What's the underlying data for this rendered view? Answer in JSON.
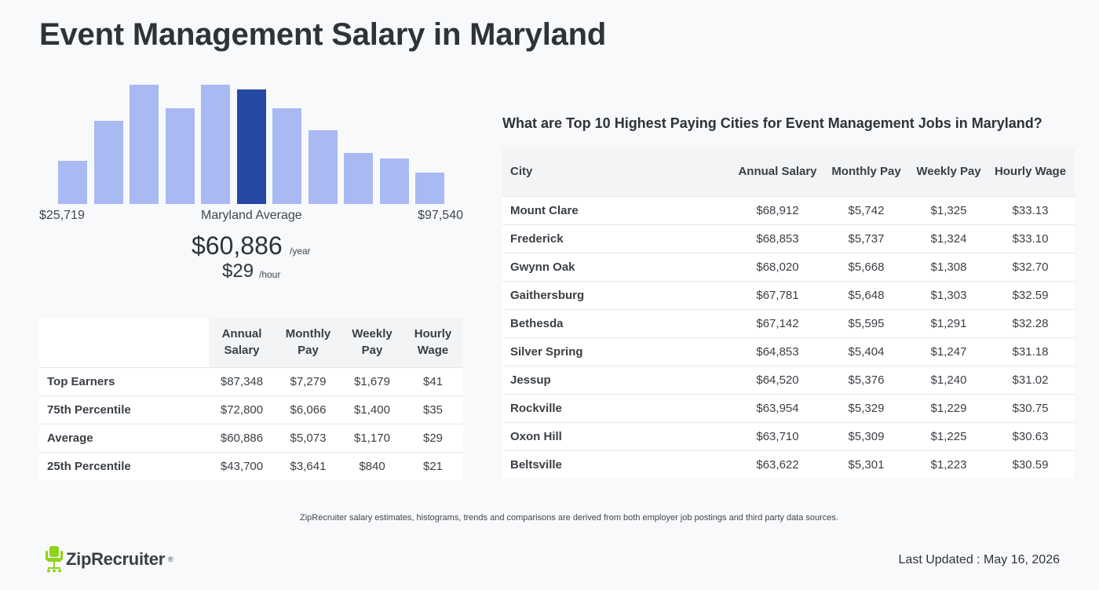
{
  "title": "Event Management Salary in Maryland",
  "histogram": {
    "min_label": "$25,719",
    "center_label": "Maryland Average",
    "max_label": "$97,540",
    "bar_heights_relative": [
      0.36,
      0.7,
      1.0,
      0.8,
      1.0,
      0.96,
      0.8,
      0.62,
      0.43,
      0.38,
      0.26
    ],
    "highlight_index": 5,
    "bar_color": "#a9b9f2",
    "highlight_color": "#2548a5"
  },
  "average": {
    "annual": "$60,886",
    "annual_unit": "/year",
    "hourly": "$29",
    "hourly_unit": "/hour"
  },
  "percentile_table": {
    "headers": [
      "",
      "Annual Salary",
      "Monthly Pay",
      "Weekly Pay",
      "Hourly Wage"
    ],
    "rows": [
      {
        "label": "Top Earners",
        "annual": "$87,348",
        "monthly": "$7,279",
        "weekly": "$1,679",
        "hourly": "$41"
      },
      {
        "label": "75th Percentile",
        "annual": "$72,800",
        "monthly": "$6,066",
        "weekly": "$1,400",
        "hourly": "$35"
      },
      {
        "label": "Average",
        "annual": "$60,886",
        "monthly": "$5,073",
        "weekly": "$1,170",
        "hourly": "$29"
      },
      {
        "label": "25th Percentile",
        "annual": "$43,700",
        "monthly": "$3,641",
        "weekly": "$840",
        "hourly": "$21"
      }
    ]
  },
  "cities": {
    "heading": "What are Top 10 Highest Paying Cities for Event Management Jobs in Maryland?",
    "headers": [
      "City",
      "Annual Salary",
      "Monthly Pay",
      "Weekly Pay",
      "Hourly Wage"
    ],
    "rows": [
      {
        "city": "Mount Clare",
        "annual": "$68,912",
        "monthly": "$5,742",
        "weekly": "$1,325",
        "hourly": "$33.13"
      },
      {
        "city": "Frederick",
        "annual": "$68,853",
        "monthly": "$5,737",
        "weekly": "$1,324",
        "hourly": "$33.10"
      },
      {
        "city": "Gwynn Oak",
        "annual": "$68,020",
        "monthly": "$5,668",
        "weekly": "$1,308",
        "hourly": "$32.70"
      },
      {
        "city": "Gaithersburg",
        "annual": "$67,781",
        "monthly": "$5,648",
        "weekly": "$1,303",
        "hourly": "$32.59"
      },
      {
        "city": "Bethesda",
        "annual": "$67,142",
        "monthly": "$5,595",
        "weekly": "$1,291",
        "hourly": "$32.28"
      },
      {
        "city": "Silver Spring",
        "annual": "$64,853",
        "monthly": "$5,404",
        "weekly": "$1,247",
        "hourly": "$31.18"
      },
      {
        "city": "Jessup",
        "annual": "$64,520",
        "monthly": "$5,376",
        "weekly": "$1,240",
        "hourly": "$31.02"
      },
      {
        "city": "Rockville",
        "annual": "$63,954",
        "monthly": "$5,329",
        "weekly": "$1,229",
        "hourly": "$30.75"
      },
      {
        "city": "Oxon Hill",
        "annual": "$63,710",
        "monthly": "$5,309",
        "weekly": "$1,225",
        "hourly": "$30.63"
      },
      {
        "city": "Beltsville",
        "annual": "$63,622",
        "monthly": "$5,301",
        "weekly": "$1,223",
        "hourly": "$30.59"
      }
    ]
  },
  "footnote": "ZipRecruiter salary estimates, histograms, trends and comparisons are derived from both employer job postings and third party data sources.",
  "brand": {
    "name": "ZipRecruiter",
    "trademark": "®",
    "icon": "ziprecruiter-chair-logo-icon",
    "color": "#8ed31c"
  },
  "last_updated": "Last Updated : May 16, 2026"
}
